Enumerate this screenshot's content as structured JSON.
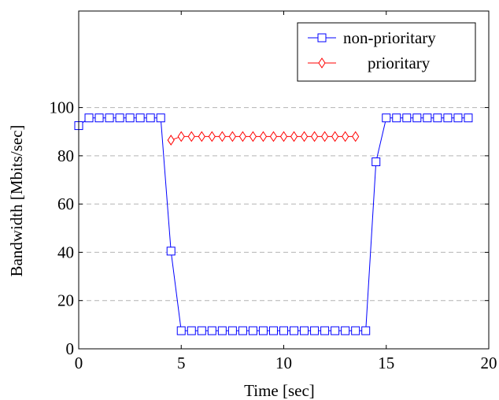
{
  "chart_data": {
    "type": "line",
    "xlabel": "Time [sec]",
    "ylabel": "Bandwidth [Mbits/sec]",
    "xlim": [
      0,
      20
    ],
    "ylim": [
      0,
      140
    ],
    "xticks": [
      0,
      5,
      10,
      15,
      20
    ],
    "yticks": [
      0,
      20,
      40,
      60,
      80,
      100
    ],
    "grid": "horizontal dashed",
    "legend_position": "top-right",
    "series": [
      {
        "name": "non-prioritary",
        "color": "#0000ff",
        "marker": "square",
        "x": [
          0,
          0.5,
          1,
          1.5,
          2,
          2.5,
          3,
          3.5,
          4,
          4.5,
          5,
          5.5,
          6,
          6.5,
          7,
          7.5,
          8,
          8.5,
          9,
          9.5,
          10,
          10.5,
          11,
          11.5,
          12,
          12.5,
          13,
          13.5,
          14,
          14.5,
          15,
          15.5,
          16,
          16.5,
          17,
          17.5,
          18,
          18.5,
          19
        ],
        "y": [
          92.5,
          95.7,
          95.7,
          95.7,
          95.7,
          95.7,
          95.7,
          95.7,
          95.7,
          40.5,
          7.5,
          7.5,
          7.5,
          7.5,
          7.5,
          7.5,
          7.5,
          7.5,
          7.5,
          7.5,
          7.5,
          7.5,
          7.5,
          7.5,
          7.5,
          7.5,
          7.5,
          7.5,
          7.5,
          77.5,
          95.7,
          95.7,
          95.7,
          95.7,
          95.7,
          95.7,
          95.7,
          95.7,
          95.7
        ]
      },
      {
        "name": "prioritary",
        "color": "#ff0000",
        "marker": "diamond",
        "x": [
          4.5,
          5,
          5.5,
          6,
          6.5,
          7,
          7.5,
          8,
          8.5,
          9,
          9.5,
          10,
          10.5,
          11,
          11.5,
          12,
          12.5,
          13,
          13.5
        ],
        "y": [
          86.5,
          88,
          88,
          88,
          88,
          88,
          88,
          88,
          88,
          88,
          88,
          88,
          88,
          88,
          88,
          88,
          88,
          88,
          88
        ]
      }
    ]
  }
}
